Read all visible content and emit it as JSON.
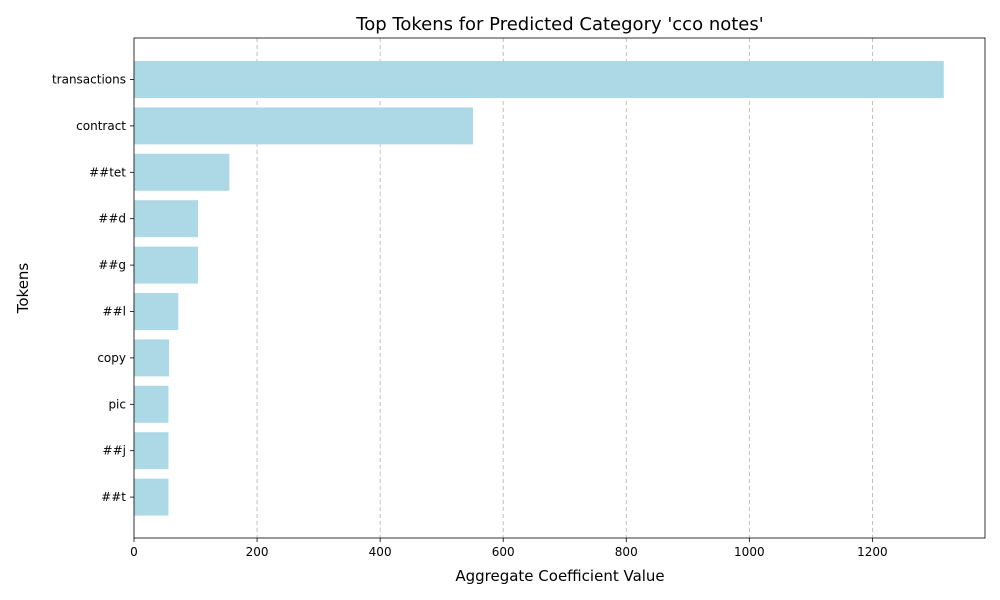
{
  "chart_data": {
    "type": "bar",
    "orientation": "horizontal",
    "title": "Top Tokens for Predicted Category 'cco notes'",
    "xlabel": "Aggregate Coefficient Value",
    "ylabel": "Tokens",
    "categories": [
      "transactions",
      "contract",
      "##tet",
      "##d",
      "##g",
      "##l",
      "copy",
      "pic",
      "##j",
      "##t"
    ],
    "values": [
      1316,
      551,
      155,
      104,
      104,
      72,
      57,
      56,
      56,
      56
    ],
    "xlim": [
      0,
      1383
    ],
    "xticks": [
      0,
      200,
      400,
      600,
      800,
      1000,
      1200
    ],
    "grid": "x-dashed",
    "bar_color": "#add8e6"
  }
}
